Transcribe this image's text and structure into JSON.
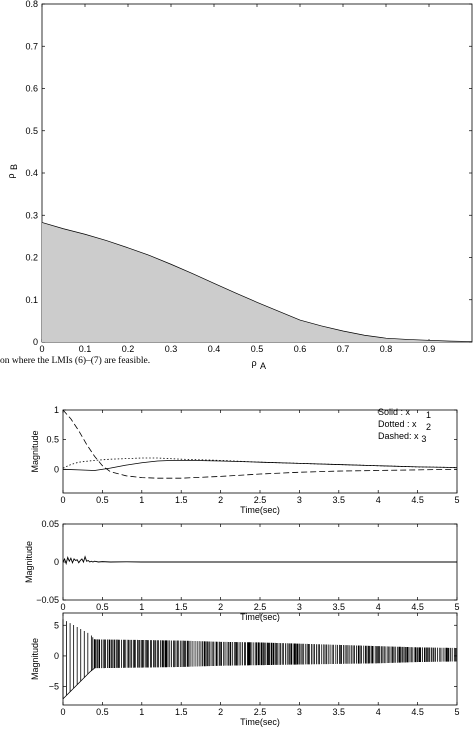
{
  "page": {
    "caption": "on where the LMIs (6)–(7) are feasible."
  },
  "chart_data": [
    {
      "type": "area",
      "xlabel_main": "ρ",
      "xlabel_sub": "A",
      "ylabel_main": "ρ",
      "ylabel_sub": "B",
      "xlim": [
        0,
        1
      ],
      "ylim": [
        0,
        0.8
      ],
      "xticks": [
        0,
        0.1,
        0.2,
        0.3,
        0.4,
        0.5,
        0.6,
        0.7,
        0.8,
        0.9
      ],
      "xtick_labels": [
        "0",
        "0.1",
        "0.2",
        "0.3",
        "0.4",
        "0.5",
        "0.6",
        "0.7",
        "0.8",
        "0.9"
      ],
      "yticks": [
        0,
        0.1,
        0.2,
        0.3,
        0.4,
        0.5,
        0.6,
        0.7,
        0.8
      ],
      "ytick_labels": [
        "0",
        "0.1",
        "0.2",
        "0.3",
        "0.4",
        "0.5",
        "0.6",
        "0.7",
        "0.8"
      ],
      "fill_color": "#cccccc",
      "x": [
        0,
        0.05,
        0.1,
        0.15,
        0.2,
        0.25,
        0.3,
        0.35,
        0.4,
        0.45,
        0.5,
        0.55,
        0.6,
        0.65,
        0.7,
        0.75,
        0.8,
        0.85,
        0.9,
        0.95,
        1.0
      ],
      "y": [
        0.283,
        0.268,
        0.255,
        0.24,
        0.223,
        0.205,
        0.184,
        0.162,
        0.139,
        0.116,
        0.094,
        0.073,
        0.052,
        0.038,
        0.026,
        0.016,
        0.009,
        0.006,
        0.004,
        0.002,
        0.001
      ]
    },
    {
      "type": "line",
      "xlabel": "Time(sec)",
      "ylabel": "Magnitude",
      "xlim": [
        0,
        5
      ],
      "ylim": [
        -0.4,
        1
      ],
      "xticks": [
        0,
        0.5,
        1,
        1.5,
        2,
        2.5,
        3,
        3.5,
        4,
        4.5,
        5
      ],
      "xtick_labels": [
        "0",
        "0.5",
        "1",
        "1.5",
        "2",
        "2.5",
        "3",
        "3.5",
        "4",
        "4.5",
        "5"
      ],
      "yticks": [
        0,
        0.5,
        1
      ],
      "ytick_labels": [
        "0",
        "0.5",
        "1"
      ],
      "legend": {
        "placement": "top-right",
        "entries": [
          {
            "label": "Solid  : x",
            "sub": "1",
            "style": "solid"
          },
          {
            "label": "Dotted : x",
            "sub": "2",
            "style": "dotted"
          },
          {
            "label": "Dashed: x",
            "sub": "3",
            "style": "dashed"
          }
        ]
      },
      "series": [
        {
          "style": "solid",
          "x": [
            0,
            0.2,
            0.4,
            0.6,
            0.8,
            1.0,
            1.2,
            1.4,
            1.6,
            2.0,
            2.5,
            3.0,
            3.5,
            4.0,
            4.5,
            5.0
          ],
          "y": [
            0,
            -0.01,
            -0.02,
            0.02,
            0.07,
            0.11,
            0.14,
            0.15,
            0.15,
            0.14,
            0.12,
            0.1,
            0.08,
            0.06,
            0.04,
            0.03
          ]
        },
        {
          "style": "dotted",
          "x": [
            0,
            0.1,
            0.2,
            0.4,
            0.6,
            0.8,
            1.0,
            1.2,
            1.5,
            2.0,
            2.5,
            3.0,
            3.5,
            4.0,
            4.5,
            5.0
          ],
          "y": [
            0.02,
            0.08,
            0.12,
            0.15,
            0.17,
            0.18,
            0.19,
            0.19,
            0.17,
            0.15,
            0.12,
            0.1,
            0.08,
            0.06,
            0.04,
            0.03
          ]
        },
        {
          "style": "dashed",
          "x": [
            0,
            0.1,
            0.2,
            0.3,
            0.4,
            0.5,
            0.6,
            0.8,
            1.0,
            1.2,
            1.5,
            2.0,
            2.5,
            3.0,
            3.5,
            4.0,
            4.5,
            5.0
          ],
          "y": [
            1.0,
            0.85,
            0.65,
            0.42,
            0.22,
            0.06,
            -0.04,
            -0.11,
            -0.14,
            -0.15,
            -0.15,
            -0.12,
            -0.08,
            -0.05,
            -0.03,
            -0.02,
            -0.01,
            0
          ]
        }
      ]
    },
    {
      "type": "line",
      "xlabel": "Time(sec)",
      "ylabel": "Magnitude",
      "xlim": [
        0,
        5
      ],
      "ylim": [
        -0.05,
        0.05
      ],
      "xticks": [
        0,
        0.5,
        1,
        1.5,
        2,
        2.5,
        3,
        3.5,
        4,
        4.5,
        5
      ],
      "xtick_labels": [
        "0",
        "0.5",
        "1",
        "1.5",
        "2",
        "2.5",
        "3",
        "3.5",
        "4",
        "4.5",
        "5"
      ],
      "yticks": [
        -0.05,
        0,
        0.05
      ],
      "ytick_labels": [
        "−0.05",
        "0",
        "0.05"
      ],
      "series": [
        {
          "style": "solid",
          "x": [
            0,
            0.02,
            0.04,
            0.06,
            0.08,
            0.1,
            0.12,
            0.14,
            0.16,
            0.18,
            0.2,
            0.22,
            0.24,
            0.26,
            0.28,
            0.3,
            0.32,
            0.34,
            0.36,
            0.38,
            0.4,
            0.45,
            0.5,
            0.6,
            0.8,
            1.0,
            2.0,
            3.0,
            4.0,
            5.0
          ],
          "y": [
            0,
            0.004,
            -0.002,
            0.006,
            0.001,
            0.005,
            -0.001,
            0.004,
            0.002,
            0.003,
            -0.001,
            0.002,
            0.004,
            0.0,
            0.007,
            0.001,
            0.002,
            0.0,
            0.001,
            0.0,
            0.001,
            0.0,
            0.0005,
            0.0,
            0.0003,
            0.0,
            0.0,
            0.0,
            0.0,
            0.0
          ]
        }
      ]
    },
    {
      "type": "line",
      "xlabel": "Time(sec)",
      "ylabel": "Magnitude",
      "xlim": [
        0,
        5
      ],
      "ylim": [
        -8,
        7
      ],
      "xticks": [
        0,
        0.5,
        1,
        1.5,
        2,
        2.5,
        3,
        3.5,
        4,
        4.5,
        5
      ],
      "xtick_labels": [
        "0",
        "0.5",
        "1",
        "1.5",
        "2",
        "2.5",
        "3",
        "3.5",
        "4",
        "4.5",
        "5"
      ],
      "yticks": [
        -5,
        0,
        5
      ],
      "ytick_labels": [
        "−5",
        "0",
        "5"
      ],
      "series": [
        {
          "style": "switching",
          "envelope_x": [
            0,
            0.35,
            0.4,
            1.0,
            1.5,
            2.0,
            2.5,
            3.0,
            3.5,
            4.0,
            4.5,
            5.0
          ],
          "envelope_upper": [
            6,
            3.5,
            2.7,
            2.6,
            2.5,
            2.3,
            2.2,
            2.0,
            1.8,
            1.6,
            1.4,
            1.3
          ],
          "envelope_lower": [
            -7,
            -2.5,
            -2.0,
            -1.9,
            -1.8,
            -1.6,
            -1.5,
            -1.4,
            -1.3,
            -1.2,
            -1.0,
            -0.9
          ]
        }
      ]
    }
  ]
}
